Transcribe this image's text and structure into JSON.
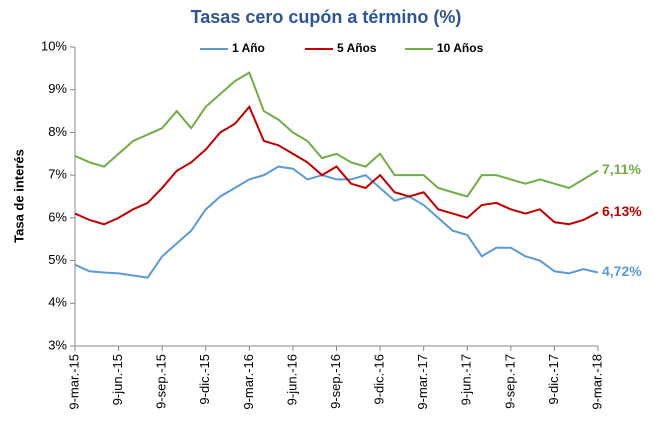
{
  "chart_data": {
    "type": "line",
    "title": "Tasas cero cupón a término (%)",
    "y_label": "Tasa de interés",
    "categories": [
      "9-mar.-15",
      null,
      null,
      "9-jun.-15",
      null,
      null,
      "9-sep.-15",
      null,
      null,
      "9-dic.-15",
      null,
      null,
      "9-mar.-16",
      null,
      null,
      "9-jun.-16",
      null,
      null,
      "9-sep.-16",
      null,
      null,
      "9-dic.-16",
      null,
      null,
      "9-mar.-17",
      null,
      null,
      "9-jun.-17",
      null,
      null,
      "9-sep.-17",
      null,
      null,
      "9-dic.-17",
      null,
      null,
      "9-mar.-18"
    ],
    "series": [
      {
        "name": "1 Año",
        "color": "#5b9bd5",
        "end_label": "4,72%",
        "values": [
          4.9,
          4.75,
          4.72,
          4.7,
          4.65,
          4.6,
          5.1,
          5.4,
          5.7,
          6.2,
          6.5,
          6.7,
          6.9,
          7.0,
          7.2,
          7.15,
          6.9,
          7.0,
          6.9,
          6.9,
          7.0,
          6.7,
          6.4,
          6.5,
          6.3,
          6.0,
          5.7,
          5.6,
          5.1,
          5.3,
          5.3,
          5.1,
          5.0,
          4.75,
          4.7,
          4.8,
          4.72
        ]
      },
      {
        "name": "5 Años",
        "color": "#c00000",
        "end_label": "6,13%",
        "values": [
          6.1,
          5.95,
          5.85,
          6.0,
          6.2,
          6.35,
          6.7,
          7.1,
          7.3,
          7.6,
          8.0,
          8.2,
          8.6,
          7.8,
          7.7,
          7.5,
          7.3,
          7.0,
          7.2,
          6.8,
          6.7,
          7.0,
          6.6,
          6.5,
          6.6,
          6.2,
          6.1,
          6.0,
          6.3,
          6.35,
          6.2,
          6.1,
          6.2,
          5.9,
          5.85,
          5.95,
          6.13
        ]
      },
      {
        "name": "10 Años",
        "color": "#70ad47",
        "end_label": "7,11%",
        "values": [
          7.45,
          7.3,
          7.2,
          7.5,
          7.8,
          7.95,
          8.1,
          8.5,
          8.1,
          8.6,
          8.9,
          9.2,
          9.4,
          8.5,
          8.3,
          8.0,
          7.8,
          7.4,
          7.5,
          7.3,
          7.2,
          7.5,
          7.0,
          7.0,
          7.0,
          6.7,
          6.6,
          6.5,
          7.0,
          7.0,
          6.9,
          6.8,
          6.9,
          6.8,
          6.7,
          6.9,
          7.11
        ]
      }
    ],
    "ylim": [
      3,
      10
    ],
    "yticks": [
      {
        "value": 3,
        "label": "3%"
      },
      {
        "value": 4,
        "label": "4%"
      },
      {
        "value": 5,
        "label": "5%"
      },
      {
        "value": 6,
        "label": "6%"
      },
      {
        "value": 7,
        "label": "7%"
      },
      {
        "value": 8,
        "label": "8%"
      },
      {
        "value": 9,
        "label": "9%"
      },
      {
        "value": 10,
        "label": "10%"
      }
    ],
    "legend": "top"
  }
}
